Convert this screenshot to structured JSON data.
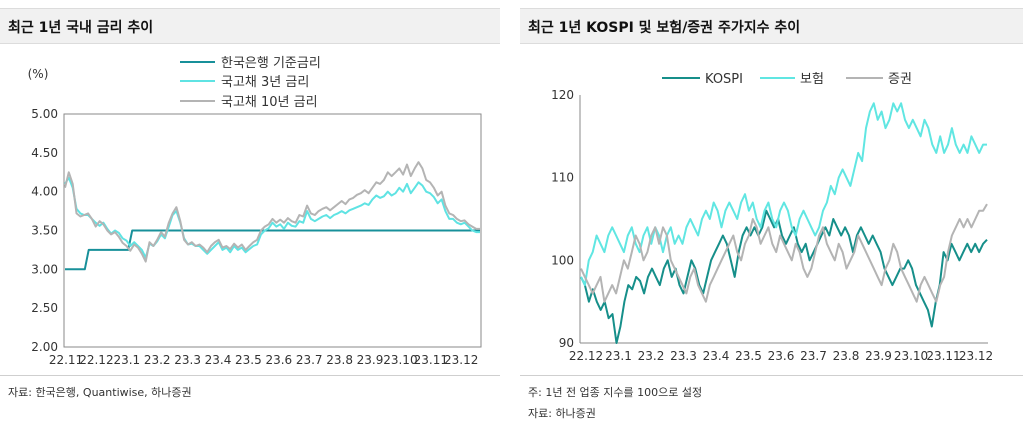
{
  "left_panel": {
    "title": "최근 1년 국내 금리 추이",
    "source": "자료: 한국은행, Quantiwise, 하나증권"
  },
  "right_panel": {
    "title": "최근 1년 KOSPI 및 보험/증권 주가지수 추이",
    "note": "주: 1년 전 업종 지수를 100으로 설정",
    "source": "자료: 하나증권"
  },
  "chart_data": [
    {
      "type": "line",
      "title": "최근 1년 국내 금리 추이",
      "unit_label": "(%)",
      "ylim": [
        2.0,
        5.0
      ],
      "yticks": [
        "5.00",
        "4.50",
        "4.00",
        "3.50",
        "3.00",
        "2.50",
        "2.00"
      ],
      "xtick_labels": [
        "22.11",
        "22.12",
        "23.1",
        "23.2",
        "23.3",
        "23.4",
        "23.5",
        "23.6",
        "23.7",
        "23.8",
        "23.9",
        "23.10",
        "23.11",
        "23.12"
      ],
      "legend_position": "top-center",
      "grid": false,
      "series": [
        {
          "name": "한국은행 기준금리",
          "color": "#18909a",
          "values": [
            3.0,
            3.0,
            3.0,
            3.0,
            3.0,
            3.0,
            3.25,
            3.25,
            3.25,
            3.25,
            3.25,
            3.25,
            3.25,
            3.25,
            3.25,
            3.25,
            3.25,
            3.5,
            3.5,
            3.5,
            3.5,
            3.5,
            3.5,
            3.5,
            3.5,
            3.5,
            3.5,
            3.5,
            3.5,
            3.5,
            3.5,
            3.5,
            3.5,
            3.5,
            3.5,
            3.5,
            3.5,
            3.5,
            3.5,
            3.5,
            3.5,
            3.5,
            3.5,
            3.5,
            3.5,
            3.5,
            3.5,
            3.5,
            3.5,
            3.5,
            3.5,
            3.5,
            3.5,
            3.5,
            3.5,
            3.5,
            3.5,
            3.5,
            3.5,
            3.5,
            3.5,
            3.5,
            3.5,
            3.5,
            3.5,
            3.5,
            3.5,
            3.5,
            3.5,
            3.5,
            3.5,
            3.5,
            3.5,
            3.5,
            3.5,
            3.5,
            3.5,
            3.5,
            3.5,
            3.5,
            3.5,
            3.5,
            3.5,
            3.5,
            3.5,
            3.5,
            3.5,
            3.5,
            3.5,
            3.5,
            3.5,
            3.5,
            3.5,
            3.5,
            3.5,
            3.5,
            3.5,
            3.5,
            3.5,
            3.5,
            3.5,
            3.5,
            3.5,
            3.5,
            3.5,
            3.5
          ]
        },
        {
          "name": "국고채 3년 금리",
          "color": "#5fe3e3",
          "values": [
            4.1,
            4.18,
            4.05,
            3.78,
            3.72,
            3.7,
            3.7,
            3.65,
            3.6,
            3.56,
            3.6,
            3.52,
            3.46,
            3.5,
            3.47,
            3.4,
            3.37,
            3.3,
            3.35,
            3.3,
            3.25,
            3.15,
            3.33,
            3.3,
            3.36,
            3.45,
            3.4,
            3.55,
            3.7,
            3.75,
            3.6,
            3.4,
            3.32,
            3.33,
            3.3,
            3.3,
            3.25,
            3.2,
            3.25,
            3.3,
            3.35,
            3.25,
            3.28,
            3.22,
            3.3,
            3.25,
            3.28,
            3.22,
            3.26,
            3.3,
            3.32,
            3.45,
            3.5,
            3.53,
            3.6,
            3.55,
            3.58,
            3.52,
            3.6,
            3.56,
            3.55,
            3.62,
            3.6,
            3.75,
            3.65,
            3.62,
            3.65,
            3.68,
            3.7,
            3.66,
            3.7,
            3.72,
            3.75,
            3.72,
            3.76,
            3.78,
            3.8,
            3.82,
            3.85,
            3.83,
            3.9,
            3.95,
            3.92,
            3.94,
            4.0,
            3.95,
            3.98,
            4.05,
            4.0,
            4.1,
            3.98,
            4.05,
            4.12,
            4.08,
            4.0,
            3.98,
            3.93,
            3.85,
            3.9,
            3.75,
            3.65,
            3.65,
            3.6,
            3.58,
            3.6,
            3.55,
            3.5,
            3.48,
            3.48
          ]
        },
        {
          "name": "국고채 10년 금리",
          "color": "#b4b4b4",
          "values": [
            4.05,
            4.25,
            4.1,
            3.72,
            3.68,
            3.7,
            3.72,
            3.65,
            3.55,
            3.62,
            3.58,
            3.5,
            3.45,
            3.48,
            3.42,
            3.34,
            3.3,
            3.24,
            3.32,
            3.28,
            3.2,
            3.1,
            3.35,
            3.3,
            3.38,
            3.48,
            3.42,
            3.6,
            3.72,
            3.8,
            3.62,
            3.38,
            3.32,
            3.35,
            3.3,
            3.32,
            3.28,
            3.22,
            3.3,
            3.35,
            3.38,
            3.28,
            3.3,
            3.26,
            3.33,
            3.28,
            3.32,
            3.25,
            3.3,
            3.35,
            3.38,
            3.5,
            3.55,
            3.58,
            3.65,
            3.6,
            3.64,
            3.6,
            3.66,
            3.62,
            3.6,
            3.7,
            3.68,
            3.82,
            3.72,
            3.7,
            3.75,
            3.78,
            3.8,
            3.76,
            3.8,
            3.84,
            3.88,
            3.84,
            3.9,
            3.92,
            3.96,
            3.98,
            4.02,
            3.98,
            4.05,
            4.12,
            4.1,
            4.15,
            4.25,
            4.2,
            4.25,
            4.3,
            4.22,
            4.35,
            4.2,
            4.3,
            4.38,
            4.3,
            4.15,
            4.12,
            4.05,
            3.95,
            4.0,
            3.82,
            3.72,
            3.7,
            3.65,
            3.62,
            3.63,
            3.58,
            3.55,
            3.52,
            3.52
          ]
        }
      ]
    },
    {
      "type": "line",
      "title": "최근 1년 KOSPI 및 보험/증권 주가지수 추이",
      "ylim": [
        90,
        120
      ],
      "yticks": [
        "120",
        "110",
        "100",
        "90"
      ],
      "xtick_labels": [
        "22.12",
        "23.1",
        "23.2",
        "23.3",
        "23.4",
        "23.5",
        "23.6",
        "23.7",
        "23.8",
        "23.9",
        "23.10",
        "23.11",
        "23.12"
      ],
      "legend_position": "top-left",
      "grid": false,
      "series": [
        {
          "name": "KOSPI",
          "color": "#168f8a",
          "values": [
            98,
            97,
            95,
            96.5,
            95,
            94,
            95,
            93,
            93.5,
            90,
            92,
            95,
            97,
            96.5,
            98,
            97.5,
            96,
            98,
            99,
            98,
            97,
            99,
            100,
            98,
            99,
            97,
            96,
            98,
            100,
            99,
            97,
            96,
            98,
            100,
            101,
            102,
            103,
            102,
            100,
            98,
            101,
            103,
            104,
            103,
            104,
            103,
            104,
            106,
            105,
            104,
            105,
            103,
            102,
            103,
            104,
            102,
            101,
            102,
            100,
            101,
            102,
            103,
            104,
            103,
            105,
            104,
            103,
            104,
            103,
            101,
            103,
            104,
            103,
            102,
            103,
            102,
            101,
            99,
            98,
            97,
            98,
            99,
            99,
            100,
            99,
            97,
            96,
            95,
            94,
            92,
            95,
            97,
            101,
            100,
            102,
            101,
            100,
            101,
            102,
            101,
            102,
            101,
            102,
            102.5
          ]
        },
        {
          "name": "보험",
          "color": "#60e6e2",
          "values": [
            98,
            97,
            100,
            101,
            103,
            102,
            101,
            103,
            104,
            103,
            102,
            101,
            103,
            104,
            102,
            101,
            103,
            104,
            102,
            104,
            103,
            101,
            103,
            104,
            102,
            103,
            102,
            104,
            105,
            104,
            103,
            105,
            106,
            105,
            107,
            106,
            104,
            106,
            107,
            106,
            105,
            107,
            108,
            106,
            107,
            105,
            104,
            106,
            107,
            105,
            104,
            106,
            107,
            106,
            104,
            103,
            105,
            106,
            105,
            104,
            103,
            104,
            106,
            107,
            109,
            108,
            110,
            111,
            110,
            109,
            111,
            113,
            112,
            116,
            118,
            119,
            117,
            118,
            116,
            117,
            119,
            118,
            119,
            117,
            116,
            117,
            116,
            115,
            117,
            116,
            114,
            113,
            115,
            113,
            114,
            116,
            114,
            113,
            114,
            113,
            115,
            114,
            113,
            114,
            114
          ]
        },
        {
          "name": "증권",
          "color": "#b4b4b4",
          "values": [
            99,
            98,
            97,
            96,
            97,
            98,
            95,
            96,
            97,
            96,
            98,
            100,
            99,
            101,
            103,
            102,
            100,
            101,
            103,
            104,
            102,
            104,
            103,
            100,
            99,
            98,
            97,
            96,
            98,
            99,
            97,
            96,
            95,
            97,
            98,
            99,
            100,
            101,
            102,
            103,
            101,
            100,
            102,
            103,
            105,
            104,
            102,
            103,
            104,
            102,
            101,
            103,
            102,
            101,
            100,
            102,
            101,
            99,
            98,
            99,
            101,
            103,
            104,
            102,
            101,
            100,
            102,
            101,
            99,
            100,
            101,
            103,
            102,
            101,
            100,
            99,
            98,
            97,
            99,
            100,
            102,
            101,
            99,
            98,
            97,
            96,
            95,
            97,
            98,
            97,
            96,
            95,
            97,
            98,
            101,
            103,
            104,
            105,
            104,
            105,
            104,
            105,
            106,
            106,
            106.8
          ]
        }
      ]
    }
  ]
}
